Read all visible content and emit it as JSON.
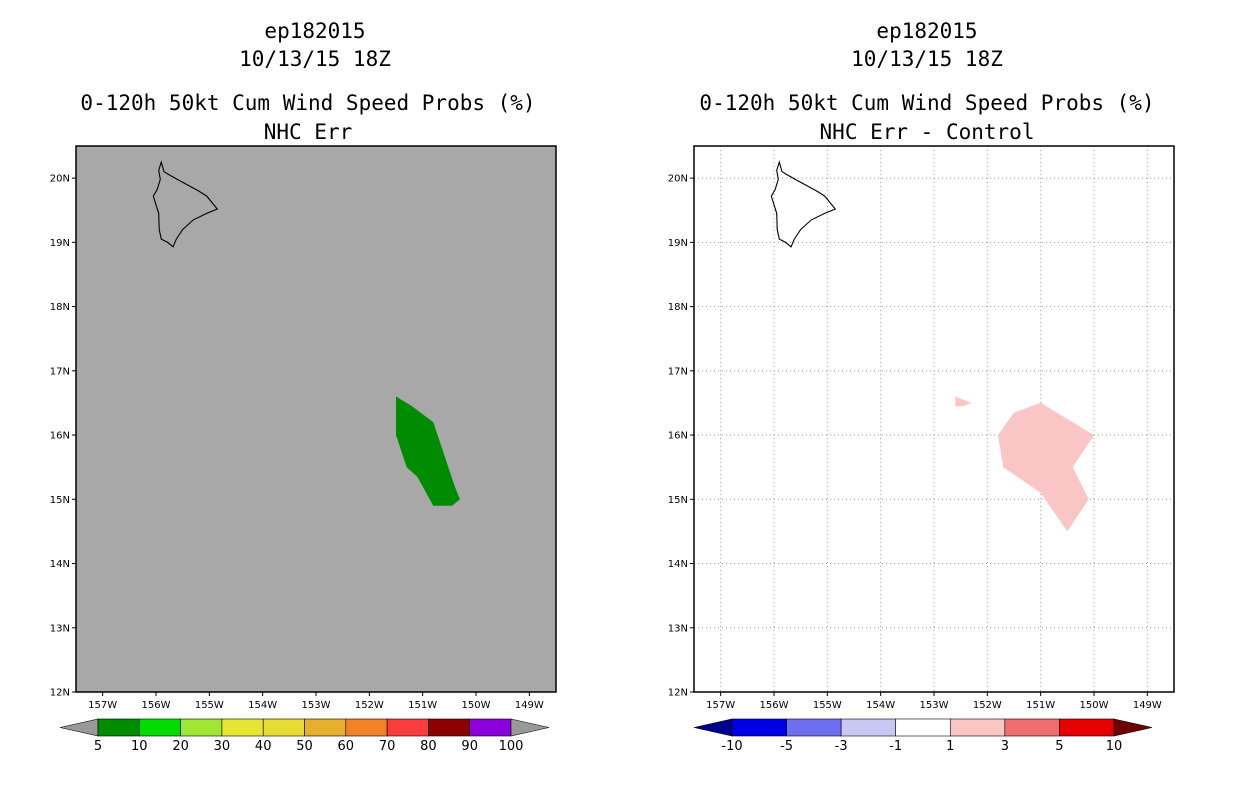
{
  "panels": [
    {
      "title_line1": "ep182015",
      "title_line2": "10/13/15 18Z",
      "title_line3": "0-120h 50kt Cum Wind Speed Probs (%)",
      "title_line4": "NHC Err",
      "background": "#a8a8a8",
      "gridlines": false,
      "field_color": "#008c00",
      "colorbar": {
        "colors": [
          "#008c00",
          "#00dc00",
          "#a0e632",
          "#e6e632",
          "#e6dc32",
          "#e6af2d",
          "#f08228",
          "#fa3c3c",
          "#8c0000",
          "#8c00dc"
        ],
        "left_arrow": "#999999",
        "right_arrow": "#999999",
        "labels": [
          "5",
          "10",
          "20",
          "30",
          "40",
          "50",
          "60",
          "70",
          "80",
          "90",
          "100"
        ]
      }
    },
    {
      "title_line1": "ep182015",
      "title_line2": "10/13/15 18Z",
      "title_line3": "0-120h 50kt Cum Wind Speed Probs (%)",
      "title_line4": "NHC Err - Control",
      "background": "#ffffff",
      "gridlines": true,
      "field_color": "#f9c5c5",
      "colorbar": {
        "colors": [
          "#0000e6",
          "#6e6ef0",
          "#c8c8f5",
          "#ffffff",
          "#f9c5c5",
          "#f06e6e",
          "#e60000"
        ],
        "left_arrow": "#00008c",
        "right_arrow": "#6e0000",
        "labels": [
          "-10",
          "-5",
          "-3",
          "-1",
          "1",
          "3",
          "5",
          "10"
        ]
      }
    }
  ],
  "chart_data": [
    {
      "type": "heatmap",
      "title": "ep182015 10/13/15 18Z 0-120h 50kt Cum Wind Speed Probs (%) NHC Err",
      "x_ticks": [
        "157W",
        "156W",
        "155W",
        "154W",
        "153W",
        "152W",
        "151W",
        "150W",
        "149W"
      ],
      "y_ticks": [
        "12N",
        "13N",
        "14N",
        "15N",
        "16N",
        "17N",
        "18N",
        "19N",
        "20N"
      ],
      "xlim": [
        -157.5,
        -148.5
      ],
      "ylim": [
        12,
        20.5
      ],
      "contour_levels": [
        5,
        10,
        20,
        30,
        40,
        50,
        60,
        70,
        80,
        90,
        100
      ],
      "filled_regions": [
        {
          "category": "5-10",
          "polygon_lon_lat": [
            [
              -151.5,
              16.6
            ],
            [
              -151.2,
              16.45
            ],
            [
              -150.8,
              16.2
            ],
            [
              -150.6,
              15.7
            ],
            [
              -150.4,
              15.2
            ],
            [
              -150.3,
              15.0
            ],
            [
              -150.45,
              14.9
            ],
            [
              -150.8,
              14.9
            ],
            [
              -151.1,
              15.35
            ],
            [
              -151.3,
              15.5
            ],
            [
              -151.5,
              16.0
            ]
          ]
        }
      ]
    },
    {
      "type": "heatmap",
      "title": "ep182015 10/13/15 18Z 0-120h 50kt Cum Wind Speed Probs (%) NHC Err - Control",
      "x_ticks": [
        "157W",
        "156W",
        "155W",
        "154W",
        "153W",
        "152W",
        "151W",
        "150W",
        "149W"
      ],
      "y_ticks": [
        "12N",
        "13N",
        "14N",
        "15N",
        "16N",
        "17N",
        "18N",
        "19N",
        "20N"
      ],
      "xlim": [
        -157.5,
        -148.5
      ],
      "ylim": [
        12,
        20.5
      ],
      "contour_levels": [
        -10,
        -5,
        -3,
        -1,
        1,
        3,
        5,
        10
      ],
      "filled_regions": [
        {
          "category": "1 to 3",
          "polygon_lon_lat": [
            [
              -152.6,
              16.6
            ],
            [
              -152.3,
              16.5
            ],
            [
              -152.45,
              16.45
            ],
            [
              -152.6,
              16.45
            ]
          ]
        },
        {
          "category": "1 to 3",
          "polygon_lon_lat": [
            [
              -151.5,
              16.35
            ],
            [
              -151.0,
              16.5
            ],
            [
              -150.0,
              16.0
            ],
            [
              -150.4,
              15.5
            ],
            [
              -150.1,
              15.0
            ],
            [
              -150.5,
              14.5
            ],
            [
              -151.0,
              15.1
            ],
            [
              -151.7,
              15.5
            ],
            [
              -151.8,
              16.0
            ]
          ]
        }
      ],
      "coastline": "Big Island of Hawaii (approx. 154.8W-156.1W, 18.9N-20.3N)"
    }
  ]
}
